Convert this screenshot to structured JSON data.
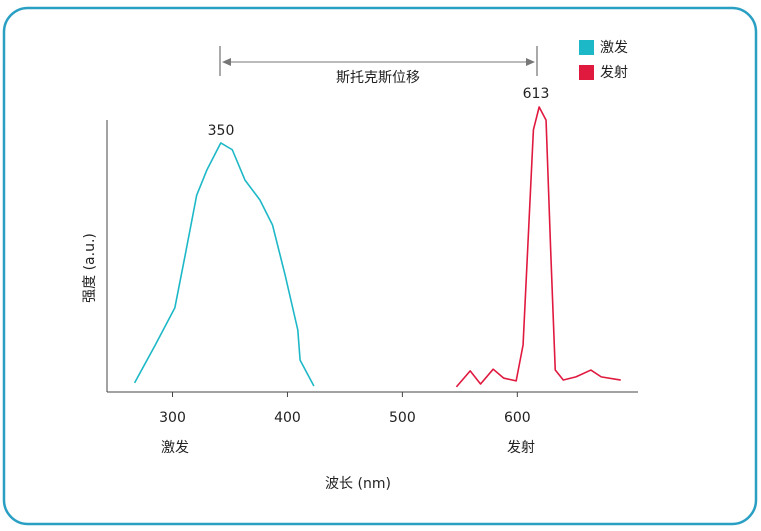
{
  "chart_data": {
    "type": "line",
    "xlabel": "波长 (nm)",
    "ylabel": "强度 (a.u.)",
    "xlim": [
      243,
      705
    ],
    "ylim": [
      0,
      100
    ],
    "xticks": [
      300,
      400,
      500,
      600
    ],
    "group_labels": [
      "激发",
      "发射"
    ],
    "peak_labels": [
      "350",
      "613"
    ],
    "shift_label": "斯托克斯位移",
    "legend": "upper right",
    "series": [
      {
        "name": "激发",
        "color": "#1db8c8",
        "x": [
          267,
          285,
          302,
          311,
          321,
          330,
          342,
          352,
          363,
          376,
          387,
          398,
          409,
          411,
          423
        ],
        "values": [
          3.2,
          16.5,
          29.5,
          48,
          69,
          78,
          87.4,
          85,
          74.4,
          67.4,
          58.6,
          41,
          21.8,
          11.2,
          2.1
        ]
      },
      {
        "name": "发射",
        "color": "#e0193f",
        "x": [
          547,
          559,
          568,
          579,
          588,
          599,
          605,
          609,
          614,
          619,
          625,
          629,
          633,
          640,
          651,
          664,
          673,
          690
        ],
        "values": [
          1.8,
          7.4,
          2.8,
          8,
          4.9,
          3.9,
          16.5,
          50,
          92,
          100,
          95.4,
          50,
          7.7,
          4.2,
          5.3,
          7.7,
          5.3,
          4.2
        ]
      }
    ]
  }
}
